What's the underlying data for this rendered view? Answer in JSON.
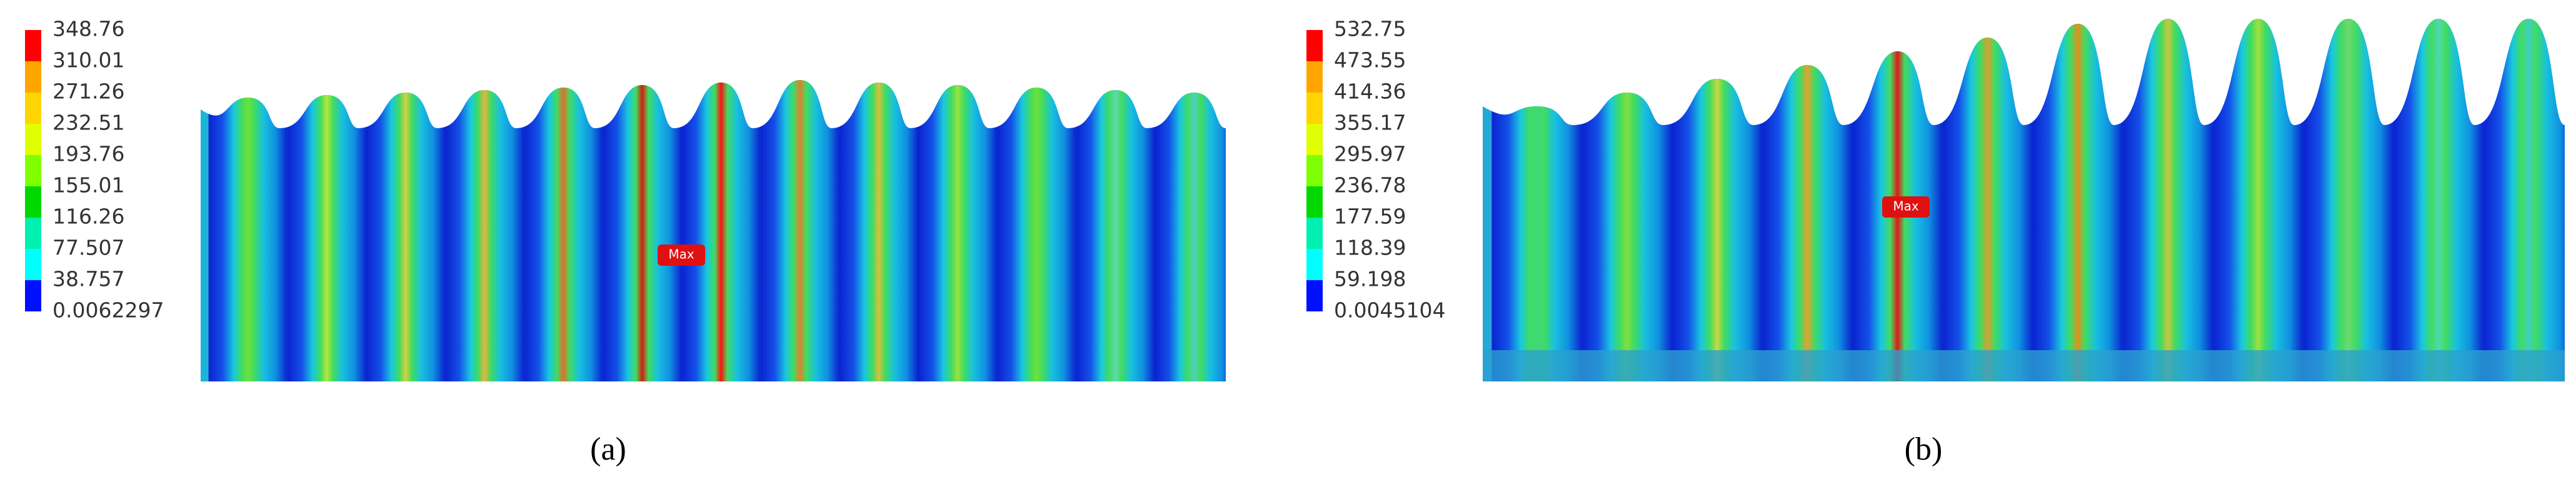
{
  "panels": [
    {
      "legend": [
        "348.76",
        "310.01",
        "271.26",
        "232.51",
        "193.76",
        "155.01",
        "116.26",
        "77.507",
        "38.757",
        "0.0062297"
      ],
      "max_label": "Max",
      "caption": "(a)"
    },
    {
      "legend": [
        "532.75",
        "473.55",
        "414.36",
        "355.17",
        "295.97",
        "236.78",
        "177.59",
        "118.39",
        "59.198",
        "0.0045104"
      ],
      "max_label": "Max",
      "caption": "(b)"
    }
  ]
}
